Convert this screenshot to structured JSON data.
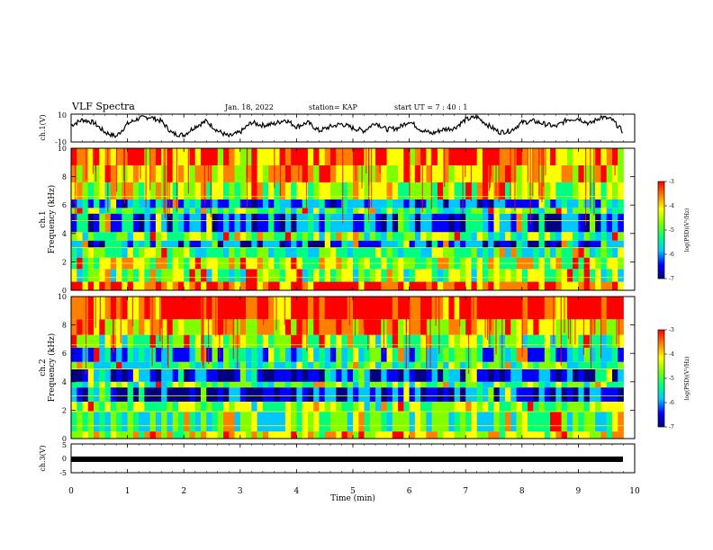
{
  "header": {
    "title": "VLF Spectra",
    "date": "Jan. 18, 2022",
    "station": "station= KAP",
    "start_ut": "start UT =  7 : 40 : 1"
  },
  "colors": {
    "scale_stops": [
      "#000080",
      "#0000ff",
      "#00c8ff",
      "#00ff80",
      "#80ff00",
      "#ffff00",
      "#ff8000",
      "#ff0000"
    ],
    "waveform": "#000000",
    "frame": "#000000"
  },
  "chart_data": [
    {
      "type": "line",
      "panel": "ch1-waveform",
      "ylabel": "ch.1(V)",
      "ylim": [
        -10,
        10
      ],
      "yticks": [
        "10",
        "-10"
      ],
      "xlim": [
        0,
        10
      ],
      "description_series": "waveform",
      "x": [
        0,
        0.2,
        0.4,
        0.6,
        0.8,
        1.0,
        1.2,
        1.4,
        1.6,
        1.8,
        2.0,
        2.2,
        2.4,
        2.6,
        2.8,
        3.0,
        3.2,
        3.4,
        3.6,
        3.8,
        4.0,
        4.2,
        4.4,
        4.6,
        4.8,
        5.0,
        5.2,
        5.4,
        5.6,
        5.8,
        6.0,
        6.2,
        6.4,
        6.6,
        6.8,
        7.0,
        7.2,
        7.4,
        7.6,
        7.8,
        8.0,
        8.2,
        8.4,
        8.6,
        8.8,
        9.0,
        9.2,
        9.4,
        9.6,
        9.8
      ],
      "values": [
        2,
        6,
        4,
        -3,
        -6,
        3,
        7,
        8,
        5,
        -4,
        -5,
        1,
        5,
        -2,
        -6,
        -3,
        4,
        2,
        3,
        6,
        1,
        4,
        -2,
        1,
        3,
        0,
        -2,
        4,
        -1,
        0,
        5,
        -1,
        -4,
        -1,
        0,
        6,
        8,
        2,
        -3,
        -2,
        4,
        5,
        3,
        1,
        6,
        7,
        3,
        8,
        6,
        -3
      ]
    },
    {
      "type": "heatmap",
      "panel": "ch1-spectrogram",
      "ylabel": "ch.1\nFrequency (kHz)",
      "xlim": [
        0,
        10
      ],
      "ylim": [
        0,
        10
      ],
      "yticks": [
        "0",
        "2",
        "4",
        "6",
        "8",
        "10"
      ],
      "colorbar": {
        "label": "log(PSD)(V²/Hz)",
        "ticks": [
          "-3",
          "-4",
          "-5",
          "-6",
          "-7"
        ],
        "range": [
          -7,
          -3
        ]
      },
      "band_levels": [
        {
          "f0": 0.0,
          "f1": 0.6,
          "level": -3.6
        },
        {
          "f0": 0.6,
          "f1": 1.5,
          "level": -4.9
        },
        {
          "f0": 1.5,
          "f1": 2.3,
          "level": -4.6
        },
        {
          "f0": 2.3,
          "f1": 3.0,
          "level": -5.2
        },
        {
          "f0": 3.0,
          "f1": 3.5,
          "level": -6.1
        },
        {
          "f0": 3.5,
          "f1": 4.1,
          "level": -4.9
        },
        {
          "f0": 4.1,
          "f1": 5.4,
          "level": -6.1
        },
        {
          "f0": 5.4,
          "f1": 5.8,
          "level": -5.0
        },
        {
          "f0": 5.8,
          "f1": 6.4,
          "level": -5.9
        },
        {
          "f0": 6.4,
          "f1": 7.6,
          "level": -4.6
        },
        {
          "f0": 7.6,
          "f1": 8.8,
          "level": -4.1
        },
        {
          "f0": 8.8,
          "f1": 10.0,
          "level": -3.8
        }
      ]
    },
    {
      "type": "heatmap",
      "panel": "ch2-spectrogram",
      "ylabel": "ch.2\nFrequency (kHz)",
      "xlim": [
        0,
        10
      ],
      "ylim": [
        0,
        10
      ],
      "yticks": [
        "0",
        "2",
        "4",
        "6",
        "8",
        "10"
      ],
      "colorbar": {
        "label": "log(PSD)(V²/Hz)",
        "ticks": [
          "-3",
          "-4",
          "-5",
          "-6",
          "-7"
        ],
        "range": [
          -7,
          -3
        ]
      },
      "band_levels": [
        {
          "f0": 0.0,
          "f1": 0.5,
          "level": -4.3
        },
        {
          "f0": 0.5,
          "f1": 1.9,
          "level": -5.2
        },
        {
          "f0": 1.9,
          "f1": 2.6,
          "level": -4.8
        },
        {
          "f0": 2.6,
          "f1": 3.6,
          "level": -6.2
        },
        {
          "f0": 3.6,
          "f1": 4.0,
          "level": -5.0
        },
        {
          "f0": 4.0,
          "f1": 4.9,
          "level": -6.2
        },
        {
          "f0": 4.9,
          "f1": 5.4,
          "level": -5.2
        },
        {
          "f0": 5.4,
          "f1": 6.4,
          "level": -5.6
        },
        {
          "f0": 6.4,
          "f1": 7.3,
          "level": -4.8
        },
        {
          "f0": 7.3,
          "f1": 8.4,
          "level": -4.1
        },
        {
          "f0": 8.4,
          "f1": 10.0,
          "level": -3.4
        }
      ]
    },
    {
      "type": "line",
      "panel": "ch3-waveform",
      "ylabel": "ch.3(V)",
      "ylim": [
        -5,
        5
      ],
      "yticks": [
        "5",
        "0",
        "-5"
      ],
      "xlim": [
        0,
        10
      ],
      "xlabel": "Time (min)",
      "xticks": [
        "0",
        "1",
        "2",
        "3",
        "4",
        "5",
        "6",
        "7",
        "8",
        "9",
        "10"
      ],
      "x": [
        0,
        9.8
      ],
      "values": [
        0,
        0
      ]
    }
  ]
}
